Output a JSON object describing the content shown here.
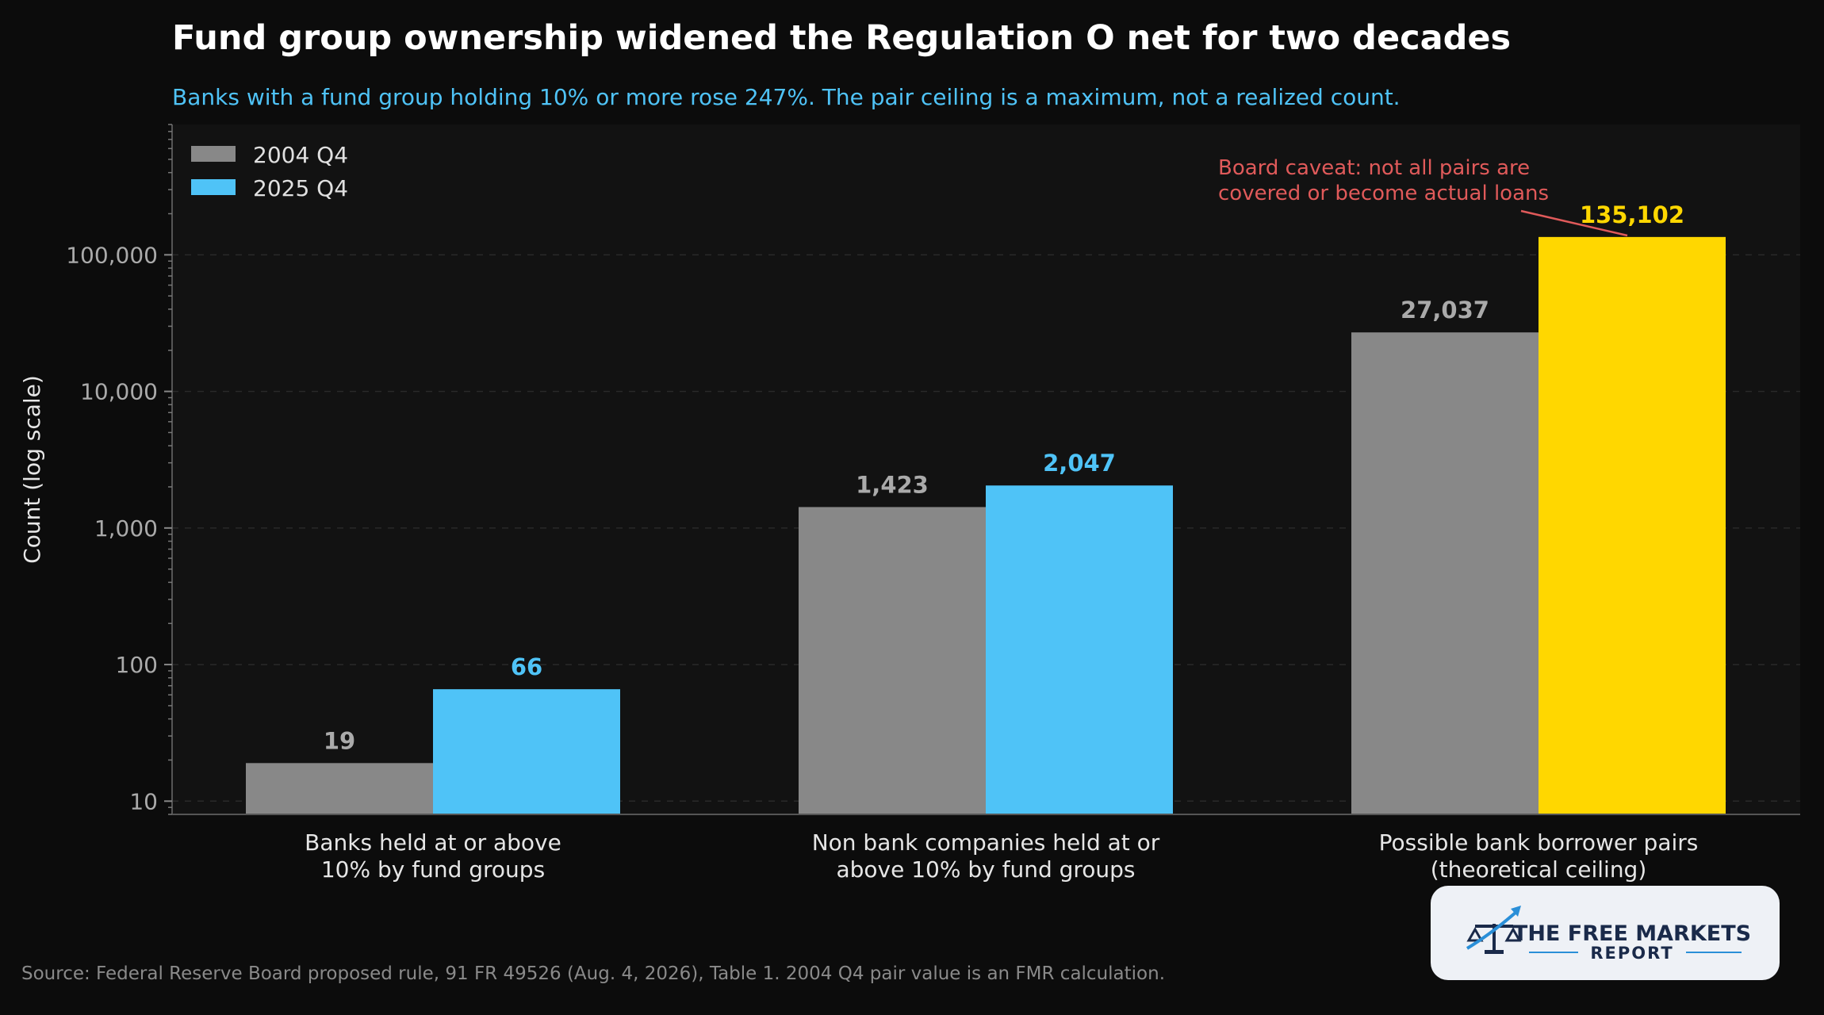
{
  "title": "Fund group ownership widened the Regulation O net for two decades",
  "subtitle": "Banks with a fund group holding 10% or more rose 247%. The pair ceiling is a maximum, not a realized count.",
  "source": "Source: Federal Reserve Board proposed rule, 91 FR 49526 (Aug. 4, 2026), Table 1. 2004 Q4 pair value is an FMR calculation.",
  "logo": {
    "line1": "THE FREE MARKETS",
    "line2": "REPORT"
  },
  "colors": {
    "background": "#0c0c0c",
    "plot_background": "#121212",
    "series_2004": "#888888",
    "series_2025": "#4fc3f7",
    "highlight": "#ffd700",
    "annotation": "#e05a5a",
    "subtitle": "#4fc3f7"
  },
  "chart_data": {
    "type": "bar",
    "scale": "log",
    "ylim": [
      8,
      900000
    ],
    "ylabel": "Count (log scale)",
    "yticks": [
      10,
      100,
      1000,
      10000,
      100000
    ],
    "ytick_labels": [
      "10",
      "100",
      "1,000",
      "10,000",
      "100,000"
    ],
    "categories": [
      [
        "Banks held at or above",
        "10% by fund groups"
      ],
      [
        "Non bank companies held at or",
        "above 10% by fund groups"
      ],
      [
        "Possible bank borrower pairs",
        "(theoretical ceiling)"
      ]
    ],
    "series": [
      {
        "name": "2004 Q4",
        "values": [
          19,
          1423,
          27037
        ],
        "labels": [
          "19",
          "1,423",
          "27,037"
        ]
      },
      {
        "name": "2025 Q4",
        "values": [
          66,
          2047,
          135102
        ],
        "labels": [
          "66",
          "2,047",
          "135,102"
        ]
      }
    ],
    "legend_position": "top-left",
    "grid": true,
    "annotation": {
      "lines": [
        "Board caveat: not all pairs are",
        "covered or become actual loans"
      ],
      "points_to": "2025 Q4 possible bank borrower pairs"
    }
  }
}
